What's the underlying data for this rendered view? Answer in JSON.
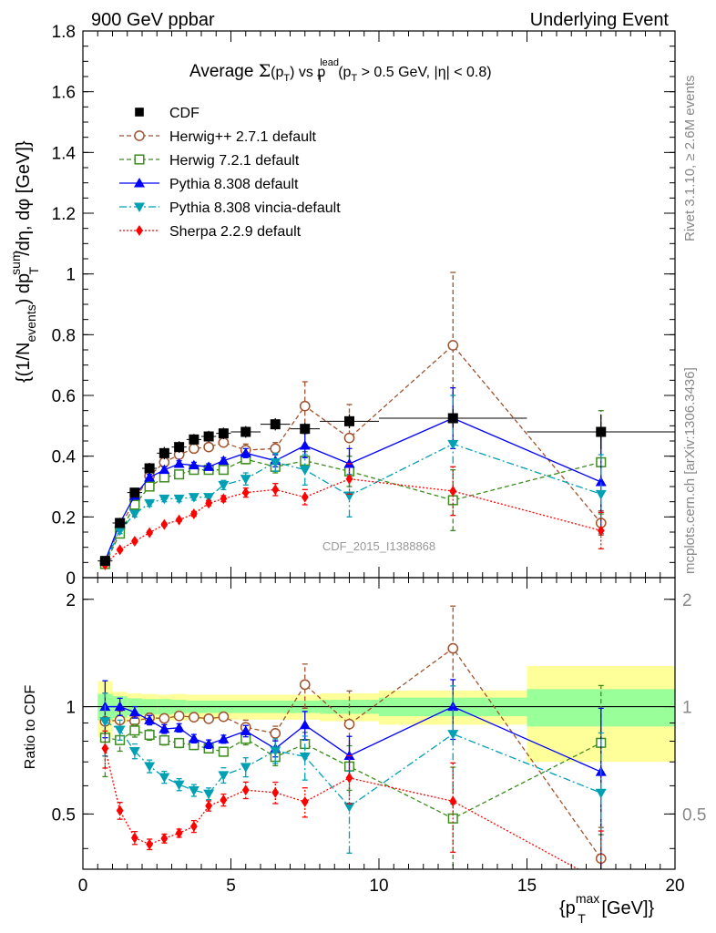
{
  "header": {
    "left": "900 GeV ppbar",
    "right": "Underlying Event"
  },
  "title": {
    "prefix": "Average ",
    "sigma": "Σ",
    "arg_open": "(p",
    "arg_sub": "T",
    "arg_close": ")",
    "vs": " vs p",
    "lead_sup": "lead",
    "lead_sub": "T",
    "cut_open": " (p",
    "cut_sub": "T",
    "cut_rest": " > 0.5 GeV, |η| < 0.8)"
  },
  "ylabel": {
    "a": "{(1/N",
    "a_sub": "events",
    "b": ") dp",
    "b_sup": "sum",
    "b_sub": "T",
    "c": "/dη, dφ [GeV]}"
  },
  "ratio_ylabel": "Ratio to CDF",
  "xlabel": {
    "a": "{p",
    "sup": "max",
    "sub": "T",
    "b": " [GeV]}"
  },
  "side_right_top": "Rivet 3.1.10, ≥ 2.6M events",
  "side_right_bottom": "mcplots.cern.ch [arXiv:1306.3436]",
  "watermark": "CDF_2015_I1388868",
  "chart_data": {
    "type": "scatter",
    "x": [
      0.75,
      1.25,
      1.75,
      2.25,
      2.75,
      3.25,
      3.75,
      4.25,
      4.75,
      5.5,
      6.5,
      7.5,
      9.0,
      12.5,
      17.5
    ],
    "xlim": [
      0,
      20
    ],
    "main_ylim": [
      0,
      1.8
    ],
    "main_yticks": [
      0,
      0.2,
      0.4,
      0.6,
      0.8,
      1,
      1.2,
      1.4,
      1.6,
      1.8
    ],
    "main_ytick_labels": [
      "0",
      "0.2",
      "0.4",
      "0.6",
      "0.8",
      "1",
      "1.2",
      "1.4",
      "1.6",
      "1.8"
    ],
    "ratio_ylim": [
      0.35,
      2.3
    ],
    "ratio_ylog": true,
    "ratio_yticks": [
      0.5,
      1,
      2
    ],
    "ratio_ytick_labels": [
      "0.5",
      "1",
      "2"
    ],
    "xticks": [
      0,
      5,
      10,
      15,
      20
    ],
    "xtick_labels": [
      "0",
      "5",
      "10",
      "15",
      "20"
    ],
    "legend_position": "top-left",
    "bins": [
      [
        0.5,
        1.0
      ],
      [
        1.0,
        1.5
      ],
      [
        1.5,
        2.0
      ],
      [
        2.0,
        2.5
      ],
      [
        2.5,
        3.0
      ],
      [
        3.0,
        3.5
      ],
      [
        3.5,
        4.0
      ],
      [
        4.0,
        4.5
      ],
      [
        4.5,
        5.0
      ],
      [
        5.0,
        6.0
      ],
      [
        6.0,
        7.0
      ],
      [
        7.0,
        8.0
      ],
      [
        8.0,
        10.0
      ],
      [
        10.0,
        15.0
      ],
      [
        15.0,
        20.0
      ]
    ],
    "data": {
      "name": "CDF",
      "color": "#000000",
      "values": [
        0.055,
        0.18,
        0.28,
        0.36,
        0.41,
        0.43,
        0.455,
        0.465,
        0.475,
        0.48,
        0.505,
        0.49,
        0.515,
        0.525,
        0.48
      ],
      "band_stat": [
        0.085,
        0.07,
        0.055,
        0.05,
        0.05,
        0.045,
        0.04,
        0.04,
        0.04,
        0.04,
        0.04,
        0.04,
        0.045,
        0.06,
        0.12
      ],
      "band_total": [
        0.18,
        0.1,
        0.09,
        0.085,
        0.08,
        0.085,
        0.08,
        0.08,
        0.08,
        0.08,
        0.08,
        0.08,
        0.09,
        0.11,
        0.3
      ]
    },
    "series": [
      {
        "name": "Herwig++ 2.7.1 default",
        "color": "#a0522d",
        "marker": "open-circle",
        "line": "dashed",
        "values": [
          0.05,
          0.165,
          0.255,
          0.335,
          0.38,
          0.405,
          0.425,
          0.43,
          0.445,
          0.42,
          0.425,
          0.565,
          0.46,
          0.765,
          0.18
        ],
        "errors": [
          0.01,
          0.01,
          0.01,
          0.01,
          0.01,
          0.01,
          0.01,
          0.01,
          0.01,
          0.02,
          0.02,
          0.08,
          0.11,
          0.24,
          0.04
        ]
      },
      {
        "name": "Herwig 7.2.1 default",
        "color": "#3c8c1e",
        "marker": "open-square",
        "line": "dashed",
        "values": [
          0.045,
          0.145,
          0.24,
          0.3,
          0.33,
          0.34,
          0.355,
          0.355,
          0.355,
          0.39,
          0.365,
          0.385,
          0.35,
          0.255,
          0.38
        ],
        "errors": [
          0.01,
          0.01,
          0.01,
          0.01,
          0.01,
          0.01,
          0.01,
          0.01,
          0.01,
          0.015,
          0.02,
          0.03,
          0.05,
          0.1,
          0.17
        ]
      },
      {
        "name": "Pythia 8.308 default",
        "color": "#0000ff",
        "marker": "filled-triangle-up",
        "line": "solid",
        "values": [
          0.055,
          0.18,
          0.27,
          0.33,
          0.355,
          0.375,
          0.37,
          0.365,
          0.385,
          0.41,
          0.385,
          0.435,
          0.375,
          0.525,
          0.315
        ],
        "errors": [
          0.01,
          0.01,
          0.01,
          0.01,
          0.01,
          0.01,
          0.01,
          0.01,
          0.01,
          0.015,
          0.02,
          0.04,
          0.05,
          0.1,
          0.16
        ]
      },
      {
        "name": "Pythia 8.308 vincia-default",
        "color": "#00a0b4",
        "marker": "filled-triangle-down",
        "line": "dashdot",
        "values": [
          0.05,
          0.155,
          0.21,
          0.245,
          0.26,
          0.26,
          0.265,
          0.265,
          0.305,
          0.325,
          0.38,
          0.355,
          0.27,
          0.44,
          0.275
        ],
        "errors": [
          0.01,
          0.01,
          0.01,
          0.01,
          0.01,
          0.01,
          0.01,
          0.01,
          0.015,
          0.02,
          0.03,
          0.05,
          0.07,
          0.16,
          0.13
        ]
      },
      {
        "name": "Sherpa 2.2.9 default",
        "color": "#ff0000",
        "marker": "filled-diamond",
        "line": "dotted",
        "values": [
          0.042,
          0.092,
          0.12,
          0.148,
          0.175,
          0.19,
          0.21,
          0.245,
          0.26,
          0.28,
          0.29,
          0.265,
          0.325,
          0.285,
          0.155
        ],
        "errors": [
          0.005,
          0.005,
          0.005,
          0.005,
          0.005,
          0.005,
          0.008,
          0.008,
          0.01,
          0.015,
          0.02,
          0.025,
          0.05,
          0.08,
          0.06
        ]
      }
    ]
  }
}
